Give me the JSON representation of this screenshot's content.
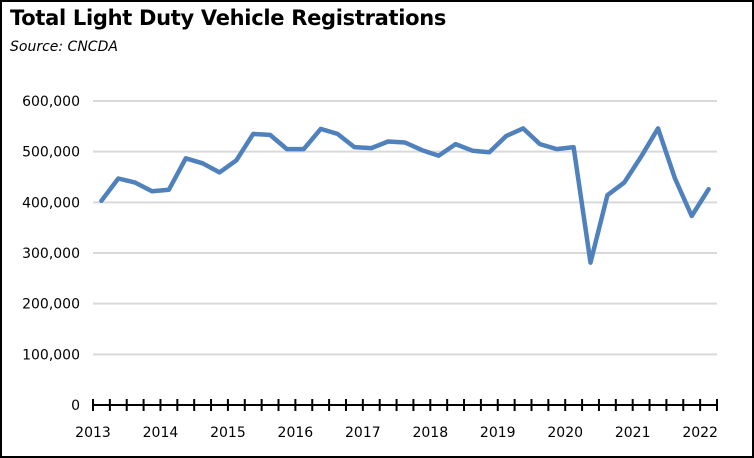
{
  "chart_data": {
    "type": "line",
    "title": "Total Light Duty Vehicle Registrations",
    "subtitle": "Source:  CNCDA",
    "xlabel": "",
    "ylabel": "",
    "ylim": [
      0,
      600000
    ],
    "yticks": [
      0,
      100000,
      200000,
      300000,
      400000,
      500000,
      600000
    ],
    "ytick_labels": [
      "0",
      "100,000",
      "200,000",
      "300,000",
      "400,000",
      "500,000",
      "600,000"
    ],
    "xtick_labels": [
      "2013",
      "2014",
      "2015",
      "2016",
      "2017",
      "2018",
      "2019",
      "2020",
      "2021",
      "2022"
    ],
    "grid": true,
    "legend": "none",
    "x": [
      "2013Q1",
      "2013Q2",
      "2013Q3",
      "2013Q4",
      "2014Q1",
      "2014Q2",
      "2014Q3",
      "2014Q4",
      "2015Q1",
      "2015Q2",
      "2015Q3",
      "2015Q4",
      "2016Q1",
      "2016Q2",
      "2016Q3",
      "2016Q4",
      "2017Q1",
      "2017Q2",
      "2017Q3",
      "2017Q4",
      "2018Q1",
      "2018Q2",
      "2018Q3",
      "2018Q4",
      "2019Q1",
      "2019Q2",
      "2019Q3",
      "2019Q4",
      "2020Q1",
      "2020Q2",
      "2020Q3",
      "2020Q4",
      "2021Q1",
      "2021Q2",
      "2021Q3",
      "2021Q4",
      "2022Q1"
    ],
    "series": [
      {
        "name": "Total Light Duty Vehicle Registrations",
        "color": "#4f81bd",
        "values": [
          403000,
          447000,
          439000,
          422000,
          425000,
          487000,
          477000,
          459000,
          483000,
          535000,
          533000,
          505000,
          505000,
          545000,
          535000,
          509000,
          507000,
          520000,
          518000,
          503000,
          492000,
          515000,
          502000,
          499000,
          531000,
          546000,
          515000,
          505000,
          509000,
          281000,
          414000,
          439000,
          490000,
          546000,
          448000,
          373000,
          426000
        ]
      }
    ]
  }
}
